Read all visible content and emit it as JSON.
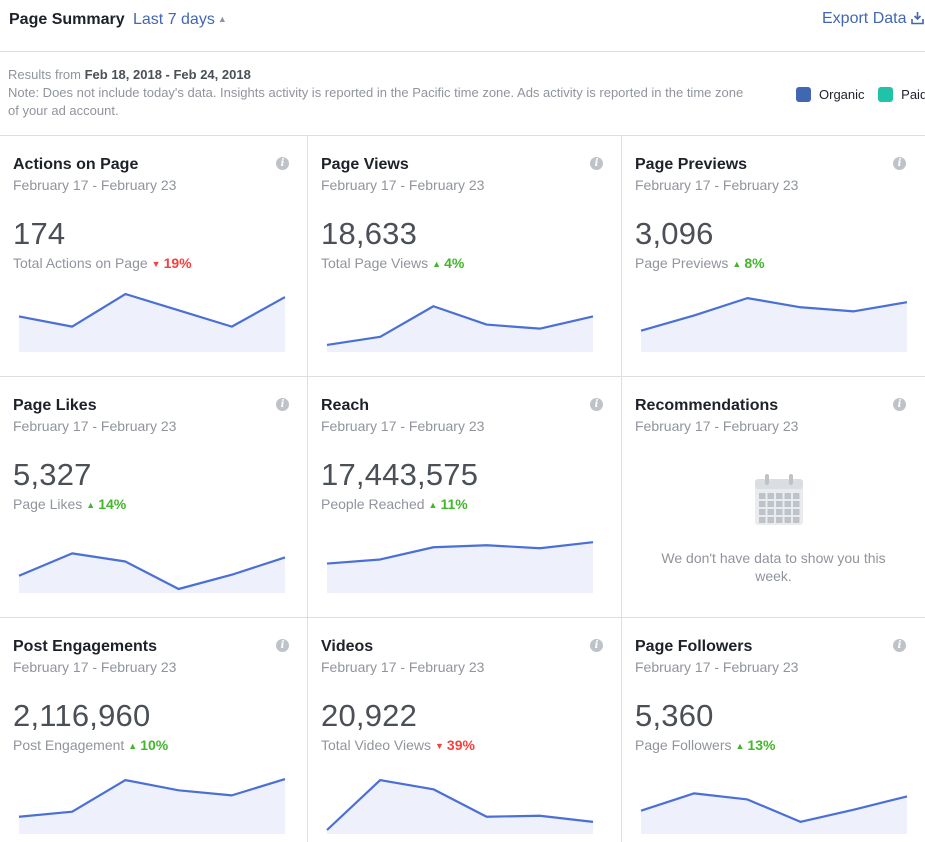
{
  "header": {
    "title": "Page Summary",
    "range_label": "Last 7 days",
    "export_label": "Export Data"
  },
  "notice": {
    "results_prefix": "Results from",
    "results_range": "Feb 18, 2018 - Feb 24, 2018",
    "note": "Note: Does not include today's data. Insights activity is reported in the Pacific time zone. Ads activity is reported in the time zone of your ad account."
  },
  "legend": [
    {
      "label": "Organic",
      "color": "#4267b2"
    },
    {
      "label": "Paid",
      "color": "#20c3a7"
    }
  ],
  "colors": {
    "line": "#4a6fd6",
    "area": "#eef1fb",
    "up": "#42b72a",
    "down": "#fa3e3e"
  },
  "cards": [
    {
      "title": "Actions on Page",
      "date": "February 17 - February 23",
      "value": "174",
      "sublabel": "Total Actions on Page",
      "change": "19%",
      "direction": "down",
      "trend": [
        31,
        21,
        53,
        37,
        21,
        50
      ]
    },
    {
      "title": "Page Views",
      "date": "February 17 - February 23",
      "value": "18,633",
      "sublabel": "Total Page Views",
      "change": "4%",
      "direction": "up",
      "trend": [
        3,
        11,
        41,
        23,
        19,
        31
      ]
    },
    {
      "title": "Page Previews",
      "date": "February 17 - February 23",
      "value": "3,096",
      "sublabel": "Page Previews",
      "change": "8%",
      "direction": "up",
      "trend": [
        17,
        32,
        49,
        40,
        36,
        45
      ]
    },
    {
      "title": "Page Likes",
      "date": "February 17 - February 23",
      "value": "5,327",
      "sublabel": "Page Likes",
      "change": "14%",
      "direction": "up",
      "trend": [
        13,
        35,
        27,
        0,
        14,
        31
      ]
    },
    {
      "title": "Reach",
      "date": "February 17 - February 23",
      "value": "17,443,575",
      "sublabel": "People Reached",
      "change": "11%",
      "direction": "up",
      "trend": [
        25,
        29,
        41,
        43,
        40,
        46
      ]
    },
    {
      "title": "Recommendations",
      "date": "February 17 - February 23",
      "empty": true,
      "empty_text": "We don't have data to show you this week."
    },
    {
      "title": "Post Engagements",
      "date": "February 17 - February 23",
      "value": "2,116,960",
      "sublabel": "Post Engagement",
      "change": "10%",
      "direction": "up",
      "trend": [
        13,
        18,
        49,
        39,
        34,
        50
      ]
    },
    {
      "title": "Videos",
      "date": "February 17 - February 23",
      "value": "20,922",
      "sublabel": "Total Video Views",
      "change": "39%",
      "direction": "down",
      "trend": [
        0,
        49,
        40,
        13,
        14,
        8
      ]
    },
    {
      "title": "Page Followers",
      "date": "February 17 - February 23",
      "value": "5,360",
      "sublabel": "Page Followers",
      "change": "13%",
      "direction": "up",
      "trend": [
        19,
        36,
        30,
        8,
        20,
        33
      ]
    }
  ]
}
